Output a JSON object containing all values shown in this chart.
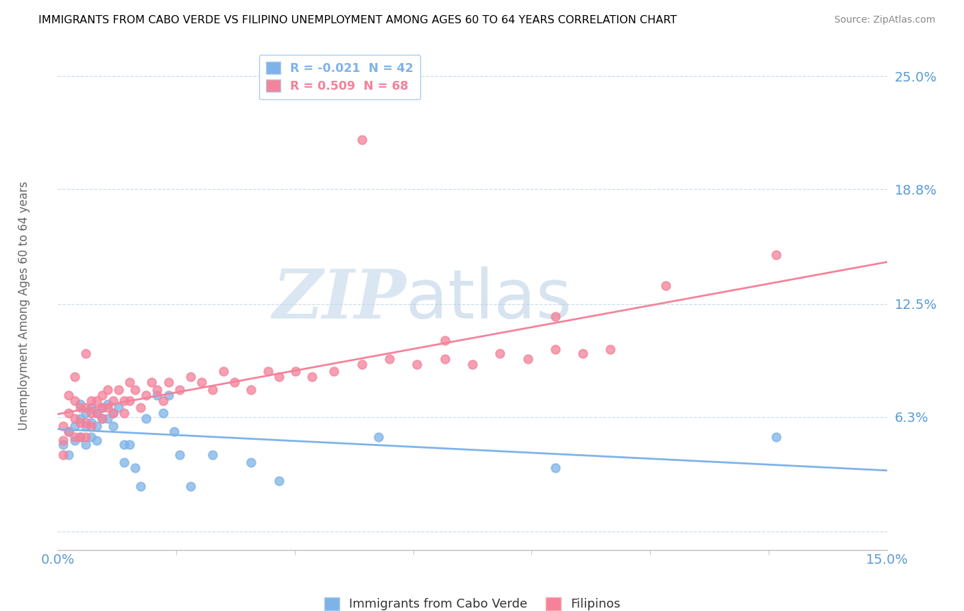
{
  "title": "IMMIGRANTS FROM CABO VERDE VS FILIPINO UNEMPLOYMENT AMONG AGES 60 TO 64 YEARS CORRELATION CHART",
  "source": "Source: ZipAtlas.com",
  "xlim": [
    0.0,
    0.15
  ],
  "ylim": [
    -0.01,
    0.265
  ],
  "yticks": [
    0.0,
    0.063,
    0.125,
    0.188,
    0.25
  ],
  "ytick_labels": [
    "",
    "6.3%",
    "12.5%",
    "18.8%",
    "25.0%"
  ],
  "xticks": [
    0.0,
    0.15
  ],
  "xtick_labels": [
    "0.0%",
    "15.0%"
  ],
  "cabo_verde_R": -0.021,
  "cabo_verde_N": 42,
  "filipino_R": 0.509,
  "filipino_N": 68,
  "cabo_verde_color": "#7EB3E8",
  "filipino_color": "#F4829A",
  "cabo_verde_label": "Immigrants from Cabo Verde",
  "filipino_label": "Filipinos",
  "watermark_zip": "ZIP",
  "watermark_atlas": "atlas",
  "watermark_color_zip": "#C8DCF0",
  "watermark_color_atlas": "#C8DCF0",
  "tick_color": "#5B9BD5",
  "grid_color": "#CCDDE8",
  "ylabel": "Unemployment Among Ages 60 to 64 years",
  "cabo_verde_x": [
    0.001,
    0.002,
    0.002,
    0.003,
    0.003,
    0.004,
    0.004,
    0.004,
    0.005,
    0.005,
    0.005,
    0.006,
    0.006,
    0.006,
    0.007,
    0.007,
    0.007,
    0.008,
    0.008,
    0.009,
    0.009,
    0.01,
    0.01,
    0.011,
    0.012,
    0.012,
    0.013,
    0.014,
    0.015,
    0.016,
    0.018,
    0.019,
    0.02,
    0.021,
    0.022,
    0.024,
    0.028,
    0.035,
    0.04,
    0.058,
    0.09,
    0.13
  ],
  "cabo_verde_y": [
    0.048,
    0.055,
    0.042,
    0.058,
    0.05,
    0.07,
    0.062,
    0.052,
    0.065,
    0.058,
    0.048,
    0.068,
    0.06,
    0.052,
    0.065,
    0.058,
    0.05,
    0.068,
    0.062,
    0.07,
    0.062,
    0.065,
    0.058,
    0.068,
    0.048,
    0.038,
    0.048,
    0.035,
    0.025,
    0.062,
    0.075,
    0.065,
    0.075,
    0.055,
    0.042,
    0.025,
    0.042,
    0.038,
    0.028,
    0.052,
    0.035,
    0.052
  ],
  "filipino_x": [
    0.001,
    0.001,
    0.001,
    0.002,
    0.002,
    0.002,
    0.003,
    0.003,
    0.003,
    0.003,
    0.004,
    0.004,
    0.004,
    0.005,
    0.005,
    0.005,
    0.005,
    0.006,
    0.006,
    0.006,
    0.007,
    0.007,
    0.008,
    0.008,
    0.008,
    0.009,
    0.009,
    0.01,
    0.01,
    0.011,
    0.012,
    0.012,
    0.013,
    0.013,
    0.014,
    0.015,
    0.016,
    0.017,
    0.018,
    0.019,
    0.02,
    0.022,
    0.024,
    0.026,
    0.028,
    0.03,
    0.032,
    0.035,
    0.038,
    0.04,
    0.043,
    0.046,
    0.05,
    0.055,
    0.06,
    0.065,
    0.07,
    0.075,
    0.08,
    0.085,
    0.09,
    0.095,
    0.1,
    0.055,
    0.07,
    0.09,
    0.11,
    0.13
  ],
  "filipino_y": [
    0.058,
    0.05,
    0.042,
    0.075,
    0.065,
    0.055,
    0.085,
    0.072,
    0.062,
    0.052,
    0.068,
    0.06,
    0.052,
    0.098,
    0.068,
    0.06,
    0.052,
    0.072,
    0.065,
    0.058,
    0.072,
    0.065,
    0.075,
    0.068,
    0.062,
    0.078,
    0.068,
    0.072,
    0.065,
    0.078,
    0.072,
    0.065,
    0.082,
    0.072,
    0.078,
    0.068,
    0.075,
    0.082,
    0.078,
    0.072,
    0.082,
    0.078,
    0.085,
    0.082,
    0.078,
    0.088,
    0.082,
    0.078,
    0.088,
    0.085,
    0.088,
    0.085,
    0.088,
    0.092,
    0.095,
    0.092,
    0.095,
    0.092,
    0.098,
    0.095,
    0.1,
    0.098,
    0.1,
    0.215,
    0.105,
    0.118,
    0.135,
    0.152
  ]
}
